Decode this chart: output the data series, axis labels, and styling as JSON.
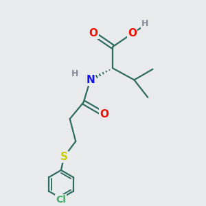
{
  "bg_color": "#e8eaec",
  "bond_color": "#2d6b5e",
  "bond_width": 1.6,
  "atom_colors": {
    "O": "#ee1100",
    "N": "#1111ee",
    "S": "#cccc00",
    "Cl": "#44aa66",
    "H": "#888899",
    "C": "#2d6b5e"
  },
  "font_size_atom": 11,
  "font_size_h": 9,
  "font_size_cl": 10
}
